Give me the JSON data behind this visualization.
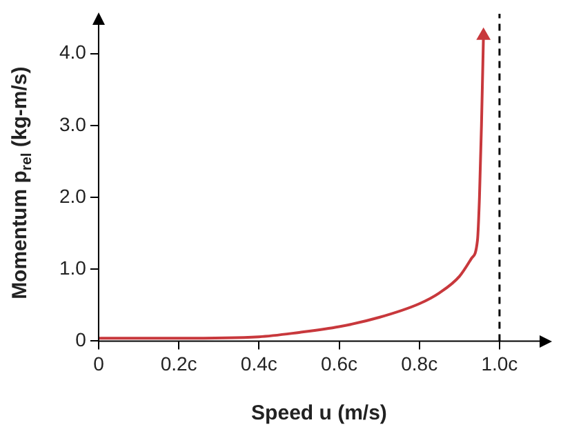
{
  "chart_data": {
    "type": "line",
    "xlabel": "Speed u (m/s)",
    "ylabel": "Momentum p$_{rel}$ (kg-m/s)",
    "xlim": [
      0,
      1.1
    ],
    "ylim": [
      0,
      4.4
    ],
    "xticks": [
      0,
      {
        "value": 0.2,
        "label": "0.2c"
      },
      {
        "value": 0.4,
        "label": "0.4c"
      },
      {
        "value": 0.6,
        "label": "0.6c"
      },
      {
        "value": 0.8,
        "label": "0.8c"
      },
      {
        "value": 1.0,
        "label": "1.0c"
      }
    ],
    "yticks": [
      0,
      {
        "value": 1,
        "label": "1.0"
      },
      {
        "value": 2,
        "label": "2.0"
      },
      {
        "value": 3,
        "label": "3.0"
      },
      {
        "value": 4,
        "label": "4.0"
      }
    ],
    "series": [
      {
        "color": "#c8383c",
        "x": [
          0,
          0.2,
          0.4,
          0.5,
          0.6,
          0.7,
          0.8,
          0.85,
          0.9,
          0.93,
          0.945,
          0.95,
          0.955,
          0.96
        ],
        "values": [
          0.04,
          0.04,
          0.06,
          0.12,
          0.2,
          0.33,
          0.52,
          0.67,
          0.9,
          1.15,
          1.4,
          2.0,
          3.0,
          4.25
        ]
      }
    ],
    "ref_lines": [
      {
        "axis": "x",
        "value": 1.0,
        "label": null,
        "color": "#000000",
        "line_style": "dashed"
      }
    ],
    "grid": false,
    "legend": false,
    "marker": "none",
    "line_style": "solid"
  }
}
